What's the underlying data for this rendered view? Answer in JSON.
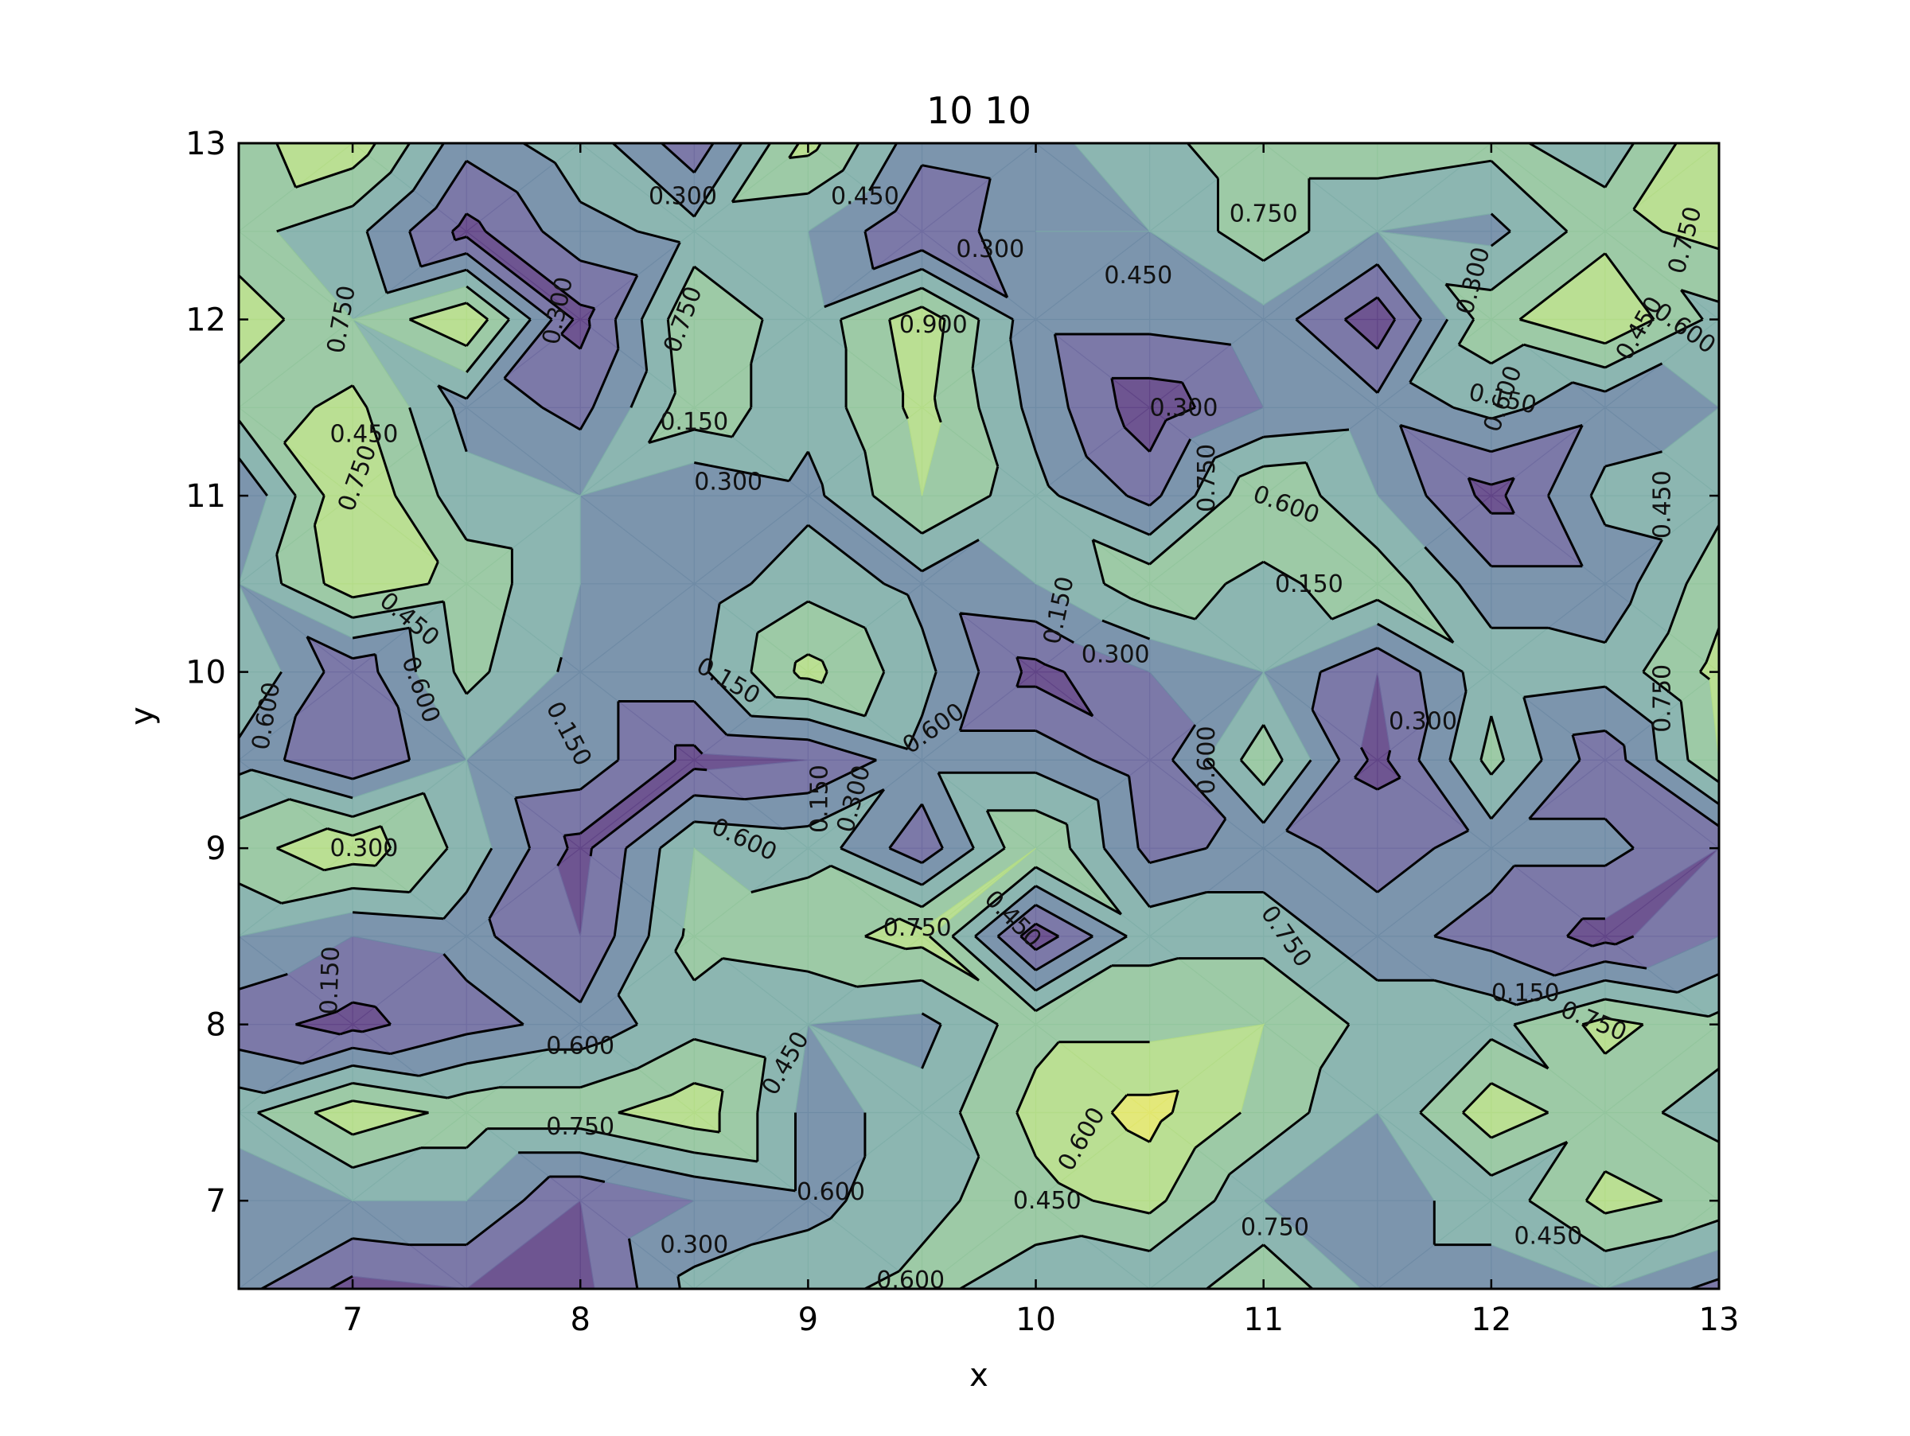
{
  "chart_data": {
    "type": "contour",
    "title": "10 10",
    "xlabel": "x",
    "ylabel": "y",
    "xlim": [
      6.5,
      13
    ],
    "ylim": [
      6.5,
      13
    ],
    "x_ticks": [
      7,
      8,
      9,
      10,
      11,
      12,
      13
    ],
    "y_ticks": [
      7,
      8,
      9,
      10,
      11,
      12,
      13
    ],
    "x_tick_labels": [
      "7",
      "8",
      "9",
      "10",
      "11",
      "12",
      "13"
    ],
    "y_tick_labels": [
      "7",
      "8",
      "9",
      "10",
      "11",
      "12",
      "13"
    ],
    "x": [
      6.5,
      7.0,
      7.5,
      8.0,
      8.5,
      9.0,
      9.5,
      10.0,
      10.5,
      11.0,
      11.5,
      12.0,
      12.5,
      13.0
    ],
    "y": [
      6.5,
      7.0,
      7.5,
      8.0,
      8.5,
      9.0,
      9.5,
      10.0,
      10.5,
      11.0,
      11.5,
      12.0,
      12.5,
      13.0
    ],
    "z": [
      [
        0.35,
        0.1,
        0.15,
        0.1,
        0.5,
        0.55,
        0.65,
        0.5,
        0.45,
        0.75,
        0.4,
        0.4,
        0.45,
        0.25
      ],
      [
        0.3,
        0.45,
        0.45,
        0.15,
        0.3,
        0.4,
        0.55,
        0.7,
        0.8,
        0.45,
        0.4,
        0.5,
        0.8,
        0.7
      ],
      [
        0.55,
        0.85,
        0.7,
        0.7,
        0.85,
        0.4,
        0.5,
        0.8,
        0.95,
        0.7,
        0.45,
        0.85,
        0.65,
        0.55
      ],
      [
        0.2,
        0.1,
        0.25,
        0.35,
        0.55,
        0.45,
        0.4,
        0.7,
        0.7,
        0.75,
        0.55,
        0.55,
        0.8,
        0.65
      ],
      [
        0.45,
        0.3,
        0.35,
        0.15,
        0.65,
        0.7,
        0.8,
        0.05,
        0.55,
        0.55,
        0.35,
        0.25,
        0.1,
        0.3
      ],
      [
        0.7,
        0.85,
        0.55,
        0.1,
        0.6,
        0.55,
        0.2,
        0.75,
        0.25,
        0.35,
        0.25,
        0.35,
        0.35,
        0.15
      ],
      [
        0.4,
        0.15,
        0.45,
        0.4,
        0.1,
        0.15,
        0.4,
        0.4,
        0.2,
        0.7,
        0.1,
        0.65,
        0.2,
        0.75
      ],
      [
        0.6,
        0.2,
        0.65,
        0.4,
        0.4,
        0.8,
        0.5,
        0.1,
        0.3,
        0.45,
        0.15,
        0.55,
        0.5,
        0.8
      ],
      [
        0.45,
        0.85,
        0.7,
        0.45,
        0.35,
        0.55,
        0.4,
        0.45,
        0.7,
        0.55,
        0.7,
        0.35,
        0.35,
        0.7
      ],
      [
        0.3,
        0.9,
        0.5,
        0.45,
        0.3,
        0.4,
        0.75,
        0.5,
        0.25,
        0.75,
        0.45,
        0.1,
        0.5,
        0.55
      ],
      [
        0.65,
        0.8,
        0.4,
        0.25,
        0.7,
        0.5,
        0.8,
        0.4,
        0.05,
        0.3,
        0.35,
        0.5,
        0.35,
        0.45
      ],
      [
        0.85,
        0.6,
        0.9,
        0.1,
        0.75,
        0.5,
        0.85,
        0.35,
        0.35,
        0.4,
        0.05,
        0.7,
        0.9,
        0.55
      ],
      [
        0.65,
        0.5,
        0.1,
        0.4,
        0.5,
        0.45,
        0.15,
        0.45,
        0.45,
        0.7,
        0.45,
        0.4,
        0.7,
        0.8
      ],
      [
        0.7,
        0.85,
        0.35,
        0.55,
        0.2,
        0.8,
        0.35,
        0.4,
        0.55,
        0.7,
        0.7,
        0.65,
        0.5,
        0.9
      ]
    ],
    "levels": [
      0.0,
      0.15,
      0.3,
      0.45,
      0.6,
      0.75,
      0.9,
      1.05
    ],
    "contour_labels": [
      "0.150",
      "0.300",
      "0.450",
      "0.600",
      "0.750",
      "0.900"
    ],
    "fill_colors": [
      "#5e4285",
      "#6e6a9e",
      "#6e8aa4",
      "#7faea8",
      "#92c49c",
      "#b2dc87",
      "#e0e66b"
    ],
    "fill_alpha": 0.9,
    "line_color": "#000000",
    "grid": false,
    "legend": "none"
  }
}
